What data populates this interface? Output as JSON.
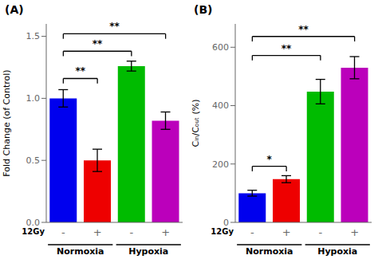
{
  "chart_data": [
    {
      "type": "bar",
      "title": "(A)",
      "y_label": "Fold Change (of Control)",
      "x_label": "12Gy",
      "categories": [
        "-",
        "+",
        "-",
        "+"
      ],
      "values": [
        1.0,
        0.5,
        1.26,
        0.82
      ],
      "errors": [
        0.07,
        0.09,
        0.04,
        0.07
      ],
      "colors": [
        "#0000EE",
        "#EE0000",
        "#00BB00",
        "#BB00BB"
      ],
      "ylim": [
        0,
        1.6
      ],
      "yticks": [
        {
          "value": 0,
          "label": "0.0"
        },
        0.5,
        {
          "value": 1,
          "label": "1.0"
        },
        1.5
      ],
      "grid": false,
      "groups": [
        {
          "label": "Normoxia",
          "from": 0,
          "to": 1
        },
        {
          "label": "Hypoxia",
          "from": 2,
          "to": 3
        }
      ],
      "annotations": [
        {
          "text": "**",
          "from": 0,
          "to": 1,
          "y": 1.12
        },
        {
          "text": "**",
          "from": 0,
          "to": 2,
          "y": 1.34
        },
        {
          "text": "**",
          "from": 0,
          "to": 3,
          "y": 1.48
        }
      ]
    },
    {
      "type": "bar",
      "title": "(B)",
      "y_label": "Cᵢₙ/Cₒᵤₜ (%)",
      "x_label": "12Gy",
      "categories": [
        "-",
        "+",
        "-",
        "+"
      ],
      "values": [
        100,
        148,
        448,
        530
      ],
      "errors": [
        10,
        12,
        42,
        38
      ],
      "colors": [
        "#0000EE",
        "#EE0000",
        "#00BB00",
        "#BB00BB"
      ],
      "ylim": [
        0,
        680
      ],
      "yticks": [
        0,
        200,
        400,
        600
      ],
      "grid": false,
      "groups": [
        {
          "label": "Normoxia",
          "from": 0,
          "to": 1
        },
        {
          "label": "Hypoxia",
          "from": 2,
          "to": 3
        }
      ],
      "annotations": [
        {
          "text": "*",
          "from": 0,
          "to": 1,
          "y": 175
        },
        {
          "text": "**",
          "from": 0,
          "to": 2,
          "y": 555
        },
        {
          "text": "**",
          "from": 0,
          "to": 3,
          "y": 620
        }
      ]
    }
  ]
}
